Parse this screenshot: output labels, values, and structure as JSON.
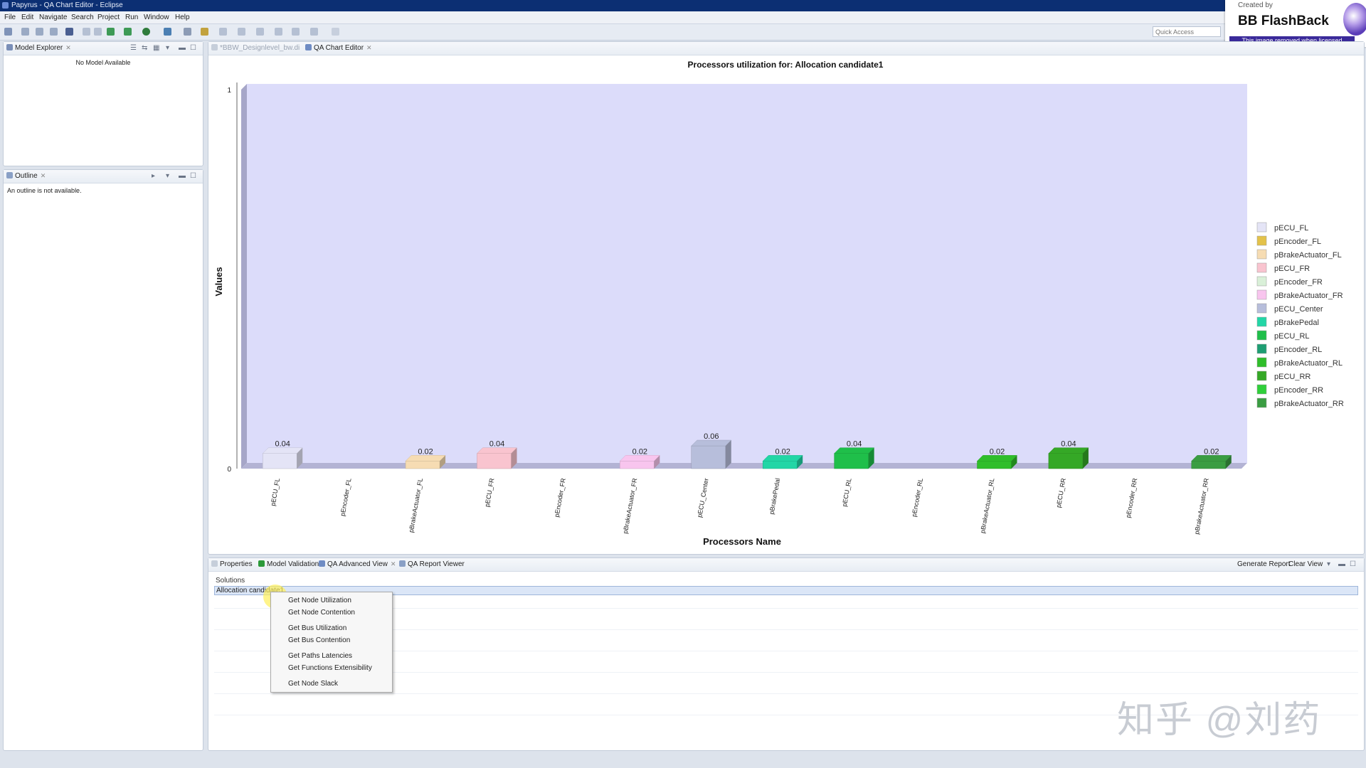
{
  "window": {
    "title": "Papyrus - QA Chart Editor - Eclipse"
  },
  "menu": [
    "File",
    "Edit",
    "Navigate",
    "Search",
    "Project",
    "Run",
    "Window",
    "Help"
  ],
  "toolbar": {
    "quick_access_placeholder": "Quick Access"
  },
  "watermark": {
    "created_by": "Created by",
    "brand": "BB FlashBack",
    "note": "This image removed when licensed"
  },
  "model_explorer": {
    "tab": "Model Explorer",
    "message": "No Model Available"
  },
  "outline": {
    "tab": "Outline",
    "message": "An outline is not available."
  },
  "editor_tabs": [
    {
      "label": "*BBW_Designlevel_bw.di",
      "active": false
    },
    {
      "label": "QA Chart Editor",
      "active": true
    }
  ],
  "chart_data": {
    "type": "bar",
    "title": "Processors utilization for: Allocation candidate1",
    "xlabel": "Processors Name",
    "ylabel": "Values",
    "ylim": [
      0,
      1
    ],
    "y_ticks": [
      "0",
      "1"
    ],
    "legend_position": "right",
    "categories": [
      "pECU_FL",
      "pEncoder_FL",
      "pBrakeActuator_FL",
      "pECU_FR",
      "pEncoder_FR",
      "pBrakeActuator_FR",
      "pECU_Center",
      "pBrakePedal",
      "pECU_RL",
      "pEncoder_RL",
      "pBrakeActuator_RL",
      "pECU_RR",
      "pEncoder_RR",
      "pBrakeActuator_RR"
    ],
    "values": [
      0.04,
      0,
      0.02,
      0.04,
      0,
      0.02,
      0.06,
      0.02,
      0.04,
      0,
      0.02,
      0.04,
      0,
      0.02
    ],
    "data_labels": [
      "0.04",
      "",
      "0.02",
      "0.04",
      "",
      "0.02",
      "0.06",
      "0.02",
      "0.04",
      "",
      "0.02",
      "0.04",
      "",
      "0.02"
    ],
    "colors": [
      "#e4e4f6",
      "#e3c24a",
      "#f6dcb3",
      "#f9c4cf",
      "#d9f0d8",
      "#f8c5ee",
      "#b7bedb",
      "#22d6a6",
      "#1fbf4a",
      "#1e9e73",
      "#2fbe2a",
      "#35a826",
      "#2fcf3a",
      "#3a9d42"
    ],
    "plot_background": "#dcdcfa"
  },
  "bottom_tabs": [
    {
      "label": "Properties",
      "active": false
    },
    {
      "label": "Model Validation",
      "active": false
    },
    {
      "label": "QA Advanced View",
      "active": true
    },
    {
      "label": "QA Report Viewer",
      "active": false
    }
  ],
  "bottom_actions": {
    "generate_report": "Generate Report",
    "clear_view": "Clear View"
  },
  "solutions": {
    "header": "Solutions",
    "selected_row": "Allocation candidate1"
  },
  "context_menu": {
    "items": [
      "Get Node Utilization",
      "Get Node Contention",
      "Get Bus Utilization",
      "Get Bus Contention",
      "Get Paths Latencies",
      "Get Functions Extensibility",
      "Get Node Slack"
    ]
  },
  "overlay_text": "知乎 @刘药"
}
